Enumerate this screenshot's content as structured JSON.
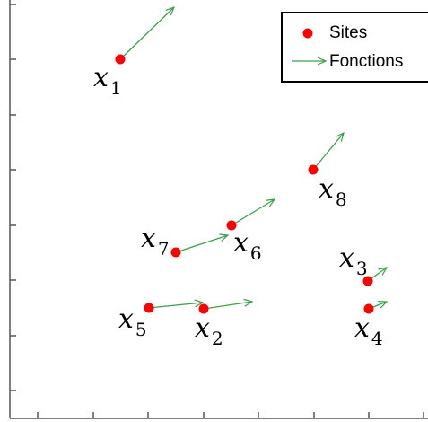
{
  "legend": {
    "sites_label": "Sites",
    "fonctions_label": "Fonctions"
  },
  "colors": {
    "site": "#ff0000",
    "arrow": "#3aa04a",
    "axis": "#555555"
  },
  "sites": [
    {
      "base": "x",
      "sub": "1"
    },
    {
      "base": "x",
      "sub": "2"
    },
    {
      "base": "x",
      "sub": "3"
    },
    {
      "base": "x",
      "sub": "4"
    },
    {
      "base": "x",
      "sub": "5"
    },
    {
      "base": "x",
      "sub": "6"
    },
    {
      "base": "x",
      "sub": "7"
    },
    {
      "base": "x",
      "sub": "8"
    }
  ]
}
